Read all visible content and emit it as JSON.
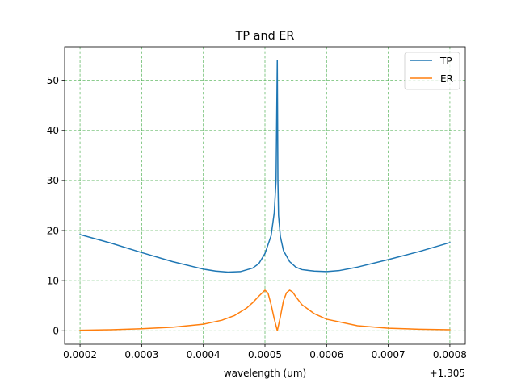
{
  "chart_data": {
    "type": "line",
    "title": "TP and ER",
    "xlabel": "wavelength (um)",
    "ylabel": "",
    "x_offset_label": "+1.305",
    "xlim": [
      0.000175,
      0.000825
    ],
    "ylim": [
      -2.7,
      56.7
    ],
    "x_ticks": [
      0.0002,
      0.0003,
      0.0004,
      0.0005,
      0.0006,
      0.0007,
      0.0008
    ],
    "x_tick_labels": [
      "0.0002",
      "0.0003",
      "0.0004",
      "0.0005",
      "0.0006",
      "0.0007",
      "0.0008"
    ],
    "y_ticks": [
      0,
      10,
      20,
      30,
      40,
      50
    ],
    "y_tick_labels": [
      "0",
      "10",
      "20",
      "30",
      "40",
      "50"
    ],
    "grid": true,
    "legend_position": "upper-right",
    "series": [
      {
        "name": "TP",
        "color": "#1f77b4",
        "x": [
          0.0002,
          0.00025,
          0.0003,
          0.00035,
          0.0004,
          0.00042,
          0.00044,
          0.00046,
          0.00048,
          0.00049,
          0.0005,
          0.00051,
          0.000515,
          0.000518,
          0.00052,
          0.000521,
          0.000522,
          0.000525,
          0.00053,
          0.00054,
          0.00055,
          0.00056,
          0.00058,
          0.0006,
          0.00062,
          0.00065,
          0.0007,
          0.00075,
          0.0008
        ],
        "y": [
          19.2,
          17.5,
          15.6,
          13.8,
          12.3,
          11.9,
          11.7,
          11.8,
          12.5,
          13.4,
          15.4,
          19.0,
          23.5,
          30.0,
          54.0,
          30.0,
          23.0,
          18.8,
          16.0,
          13.8,
          12.7,
          12.2,
          11.9,
          11.8,
          12.0,
          12.7,
          14.2,
          15.8,
          17.6
        ]
      },
      {
        "name": "ER",
        "color": "#ff7f0e",
        "x": [
          0.0002,
          0.00025,
          0.0003,
          0.00035,
          0.0004,
          0.00043,
          0.00045,
          0.00047,
          0.00048,
          0.00049,
          0.0005,
          0.000505,
          0.00051,
          0.000515,
          0.00052,
          0.000525,
          0.00053,
          0.000535,
          0.00054,
          0.000545,
          0.00055,
          0.00056,
          0.00058,
          0.0006,
          0.00065,
          0.0007,
          0.00075,
          0.0008
        ],
        "y": [
          0.1,
          0.2,
          0.4,
          0.7,
          1.3,
          2.1,
          3.0,
          4.5,
          5.6,
          6.9,
          8.1,
          7.5,
          5.2,
          2.4,
          0.0,
          2.8,
          6.0,
          7.6,
          8.1,
          7.7,
          6.8,
          5.2,
          3.4,
          2.3,
          1.0,
          0.5,
          0.3,
          0.2
        ]
      }
    ]
  }
}
